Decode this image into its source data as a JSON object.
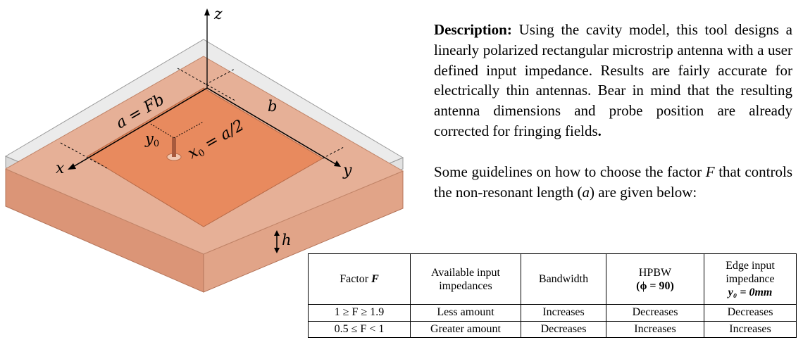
{
  "diagram": {
    "axes": {
      "z": "z",
      "x": "x",
      "y": "y"
    },
    "labels": {
      "a": "a = Fb",
      "b": "b",
      "x0": "x",
      "x0_sub": "0",
      "x0_rest": " = a/2",
      "y0": "y",
      "y0_sub": "0",
      "h": "h"
    },
    "colors": {
      "substrate_top": "#e6b097",
      "patch": "#e88a5e",
      "substrate_side_left": "#db9577",
      "substrate_side_right": "#e1a488",
      "ground_edge": "#c9c9c9"
    }
  },
  "description": {
    "label": "Description:",
    "text": " Using the cavity model, this tool designs a linearly polarized rectangular microstrip antenna with a user defined input impedance. Results are fairly accurate for electrically thin antennas. Bear in mind that the resulting antenna dimensions and probe position are already corrected for fringing fields",
    "end": ".",
    "guide_pre": "Some guidelines on how to choose the factor ",
    "guide_var": "F",
    "guide_mid": " that controls the non-resonant length (",
    "guide_var2": "a",
    "guide_post": ") are given below:"
  },
  "table": {
    "headers": {
      "factor_pre": "Factor ",
      "factor_var": "F",
      "available": "Available input impedances",
      "bandwidth": "Bandwidth",
      "hpbw": "HPBW",
      "hpbw_sub": "(ϕ = 90)",
      "edge": "Edge input impedance",
      "edge_sub": "y₀ = 0mm"
    },
    "rows": [
      {
        "factor": "1 ≥ F ≥ 1.9",
        "available": "Less amount",
        "bandwidth": "Increases",
        "hpbw": "Decreases",
        "edge": "Decreases"
      },
      {
        "factor": "0.5 ≤ F < 1",
        "available": "Greater amount",
        "bandwidth": "Decreases",
        "hpbw": "Increases",
        "edge": "Increases"
      }
    ]
  }
}
